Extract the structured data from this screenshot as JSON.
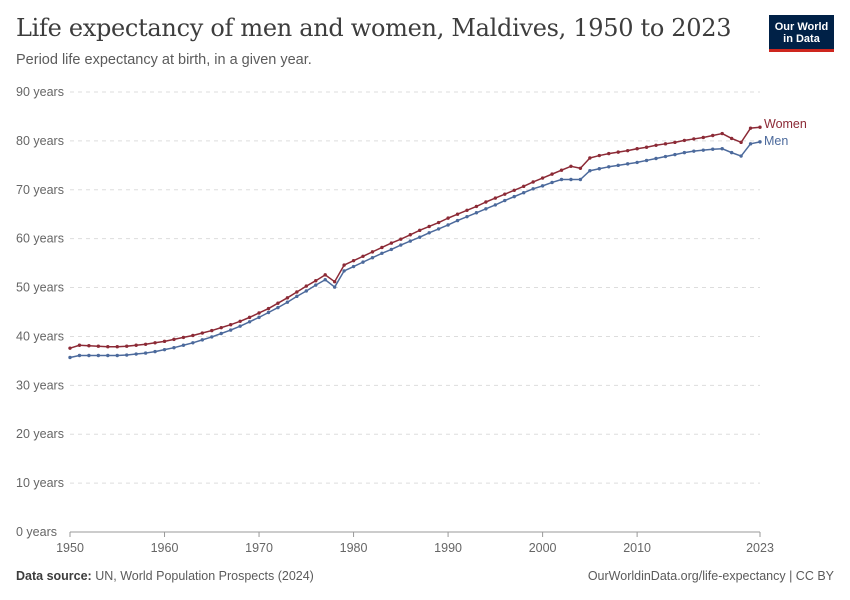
{
  "header": {
    "title": "Life expectancy of men and women, Maldives, 1950 to 2023",
    "subtitle": "Period life expectancy at birth, in a given year."
  },
  "logo": {
    "line1": "Our World",
    "line2": "in Data"
  },
  "footer": {
    "source_label": "Data source:",
    "source_text": "UN, World Population Prospects (2024)",
    "link": "OurWorldinData.org/life-expectancy | CC BY"
  },
  "colors": {
    "women": "#8c2a36",
    "men": "#4c6a9c",
    "grid": "#dddddd",
    "axis": "#666666"
  },
  "chart_data": {
    "type": "line",
    "title": "Life expectancy of men and women, Maldives, 1950 to 2023",
    "subtitle": "Period life expectancy at birth, in a given year.",
    "xlabel": "",
    "ylabel": "",
    "xlim": [
      1950,
      2023
    ],
    "ylim": [
      0,
      90
    ],
    "x_ticks": [
      {
        "value": 1950,
        "label": "1950"
      },
      {
        "value": 1960,
        "label": "1960"
      },
      {
        "value": 1970,
        "label": "1970"
      },
      {
        "value": 1980,
        "label": "1980"
      },
      {
        "value": 1990,
        "label": "1990"
      },
      {
        "value": 2000,
        "label": "2000"
      },
      {
        "value": 2010,
        "label": "2010"
      },
      {
        "value": 2023,
        "label": "2023"
      }
    ],
    "y_ticks": [
      {
        "value": 0,
        "label": "0 years"
      },
      {
        "value": 10,
        "label": "10 years"
      },
      {
        "value": 20,
        "label": "20 years"
      },
      {
        "value": 30,
        "label": "30 years"
      },
      {
        "value": 40,
        "label": "40 years"
      },
      {
        "value": 50,
        "label": "50 years"
      },
      {
        "value": 60,
        "label": "60 years"
      },
      {
        "value": 70,
        "label": "70 years"
      },
      {
        "value": 80,
        "label": "80 years"
      },
      {
        "value": 90,
        "label": "90 years"
      }
    ],
    "grid": true,
    "legend": "line-end labels",
    "x": [
      1950,
      1951,
      1952,
      1953,
      1954,
      1955,
      1956,
      1957,
      1958,
      1959,
      1960,
      1961,
      1962,
      1963,
      1964,
      1965,
      1966,
      1967,
      1968,
      1969,
      1970,
      1971,
      1972,
      1973,
      1974,
      1975,
      1976,
      1977,
      1978,
      1979,
      1980,
      1981,
      1982,
      1983,
      1984,
      1985,
      1986,
      1987,
      1988,
      1989,
      1990,
      1991,
      1992,
      1993,
      1994,
      1995,
      1996,
      1997,
      1998,
      1999,
      2000,
      2001,
      2002,
      2003,
      2004,
      2005,
      2006,
      2007,
      2008,
      2009,
      2010,
      2011,
      2012,
      2013,
      2014,
      2015,
      2016,
      2017,
      2018,
      2019,
      2020,
      2021,
      2022,
      2023
    ],
    "series": [
      {
        "name": "Women",
        "color": "#8c2a36",
        "values": [
          37.6,
          38.2,
          38.1,
          38.0,
          37.9,
          37.9,
          38.0,
          38.2,
          38.4,
          38.7,
          39.0,
          39.4,
          39.8,
          40.2,
          40.7,
          41.2,
          41.8,
          42.4,
          43.1,
          43.9,
          44.8,
          45.7,
          46.8,
          47.9,
          49.1,
          50.3,
          51.4,
          52.6,
          51.2,
          54.6,
          55.5,
          56.4,
          57.3,
          58.2,
          59.1,
          59.9,
          60.8,
          61.7,
          62.5,
          63.3,
          64.2,
          65.0,
          65.8,
          66.6,
          67.5,
          68.3,
          69.1,
          69.9,
          70.7,
          71.6,
          72.4,
          73.2,
          74.0,
          74.8,
          74.4,
          76.5,
          77.0,
          77.4,
          77.7,
          78.0,
          78.4,
          78.7,
          79.1,
          79.4,
          79.7,
          80.1,
          80.4,
          80.7,
          81.1,
          81.5,
          80.5,
          79.7,
          82.6,
          82.8
        ]
      },
      {
        "name": "Men",
        "color": "#4c6a9c",
        "values": [
          35.7,
          36.1,
          36.1,
          36.1,
          36.1,
          36.1,
          36.2,
          36.4,
          36.6,
          36.9,
          37.3,
          37.7,
          38.2,
          38.7,
          39.3,
          39.9,
          40.6,
          41.3,
          42.1,
          43.0,
          43.9,
          44.9,
          45.9,
          47.0,
          48.2,
          49.3,
          50.5,
          51.6,
          50.1,
          53.4,
          54.3,
          55.2,
          56.1,
          57.0,
          57.8,
          58.7,
          59.5,
          60.3,
          61.2,
          62.0,
          62.8,
          63.7,
          64.5,
          65.3,
          66.1,
          66.9,
          67.8,
          68.6,
          69.4,
          70.2,
          70.8,
          71.5,
          72.1,
          72.1,
          72.1,
          73.9,
          74.3,
          74.7,
          75.0,
          75.3,
          75.6,
          76.0,
          76.4,
          76.8,
          77.2,
          77.6,
          77.9,
          78.1,
          78.3,
          78.4,
          77.6,
          76.9,
          79.4,
          79.8
        ]
      }
    ]
  }
}
